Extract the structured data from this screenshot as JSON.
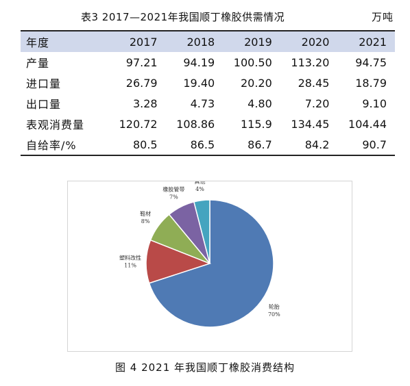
{
  "table": {
    "title": "表3  2017—2021年我国顺丁橡胶供需情况",
    "unit": "万吨",
    "headers": [
      "年度",
      "2017",
      "2018",
      "2019",
      "2020",
      "2021"
    ],
    "rows": [
      [
        "产量",
        "97.21",
        "94.19",
        "100.50",
        "113.20",
        "94.75"
      ],
      [
        "进口量",
        "26.79",
        "19.40",
        "20.20",
        "28.45",
        "18.79"
      ],
      [
        "出口量",
        "3.28",
        "4.73",
        "4.80",
        "7.20",
        "9.10"
      ],
      [
        "表观消费量",
        "120.72",
        "108.86",
        "115.9",
        "134.45",
        "104.44"
      ],
      [
        "自给率/%",
        "80.5",
        "86.5",
        "86.7",
        "84.2",
        "90.7"
      ]
    ]
  },
  "chart_data": {
    "type": "pie",
    "slices": [
      {
        "label": "轮胎",
        "value": 70,
        "value_text": "70%",
        "color": "#4f7ab4"
      },
      {
        "label": "塑料改性",
        "value": 11,
        "value_text": "11%",
        "color": "#b94a48"
      },
      {
        "label": "鞋材",
        "value": 8,
        "value_text": "8%",
        "color": "#8fad55"
      },
      {
        "label": "橡胶管带",
        "value": 7,
        "value_text": "7%",
        "color": "#7b63a3"
      },
      {
        "label": "其他",
        "value": 4,
        "value_text": "4%",
        "color": "#45a4bf"
      }
    ]
  },
  "figure": {
    "caption": "图 4  2021 年我国顺丁橡胶消费结构"
  }
}
